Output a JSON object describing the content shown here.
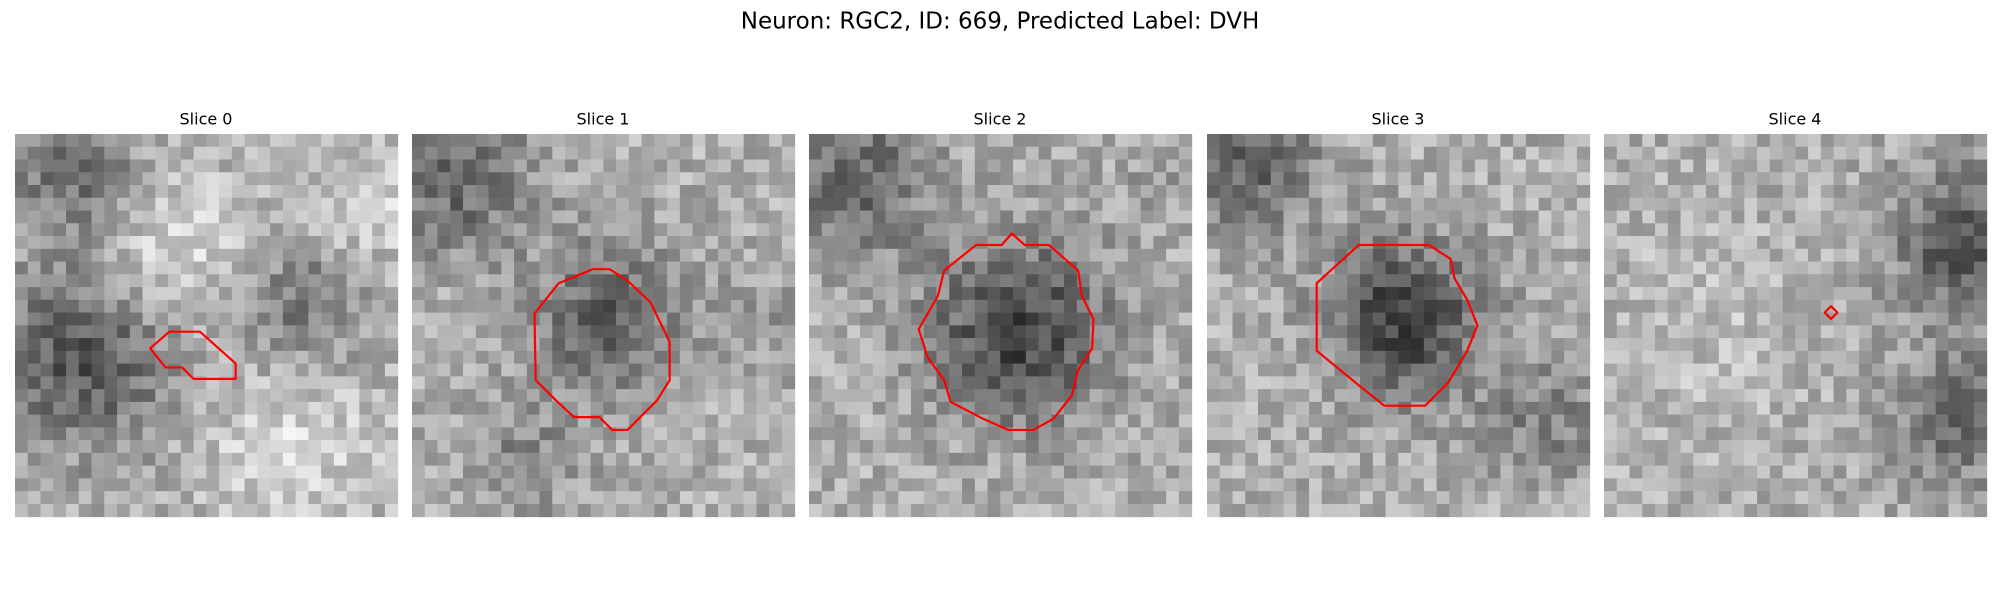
{
  "figure": {
    "title": "Neuron: RGC2, ID: 669, Predicted Label: DVH",
    "panels": [
      {
        "title": "Slice 0"
      },
      {
        "title": "Slice 1"
      },
      {
        "title": "Slice 2"
      },
      {
        "title": "Slice 3"
      },
      {
        "title": "Slice 4"
      }
    ]
  }
}
